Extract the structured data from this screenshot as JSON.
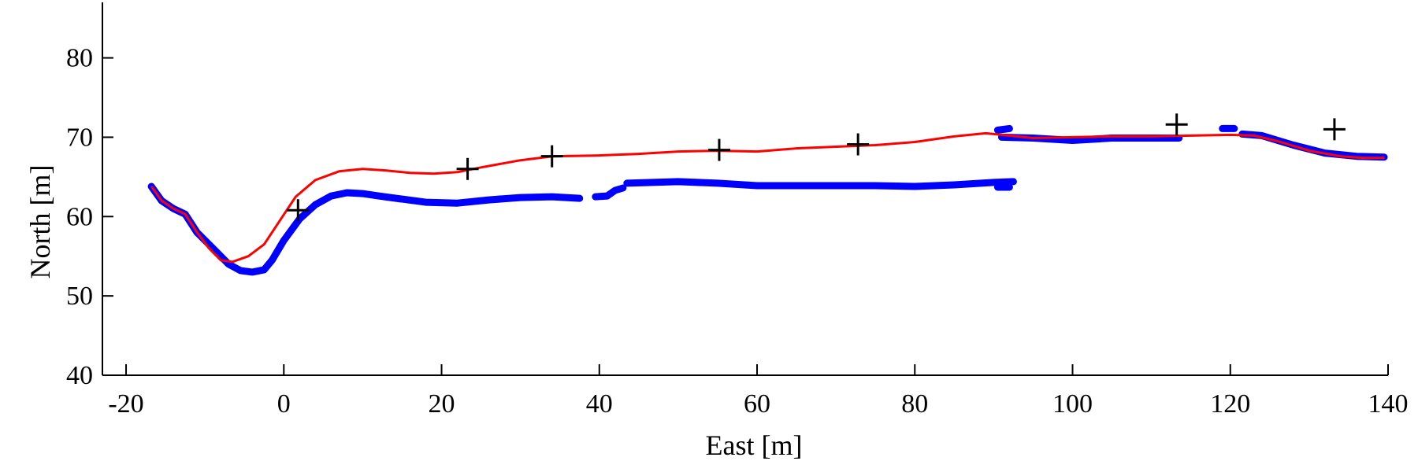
{
  "chart_data": {
    "type": "line",
    "title": "",
    "xlabel": "East [m]",
    "ylabel": "North [m]",
    "xlim": [
      -23,
      140
    ],
    "ylim": [
      40,
      87
    ],
    "xticks": [
      -20,
      0,
      20,
      40,
      60,
      80,
      100,
      120,
      140
    ],
    "yticks": [
      40,
      50,
      60,
      70,
      80
    ],
    "grid": false,
    "legend": "none",
    "colors": {
      "blue": "#0000ff",
      "red": "#ff0000",
      "black": "#000000"
    },
    "series": [
      {
        "style": "blue-dots",
        "segments": [
          [
            [
              -16.8,
              63.8
            ],
            [
              -15.5,
              62
            ],
            [
              -14,
              61
            ],
            [
              -12.5,
              60.3
            ],
            [
              -11,
              58
            ],
            [
              -9.5,
              56.5
            ],
            [
              -8,
              55
            ],
            [
              -7,
              54
            ],
            [
              -5.5,
              53.2
            ],
            [
              -4,
              53
            ],
            [
              -2.5,
              53.3
            ],
            [
              -1.5,
              54.5
            ],
            [
              0,
              57
            ],
            [
              2,
              59.7
            ],
            [
              4,
              61.5
            ],
            [
              6,
              62.6
            ],
            [
              8,
              63
            ],
            [
              10,
              62.9
            ],
            [
              12,
              62.6
            ],
            [
              15,
              62.2
            ],
            [
              18,
              61.8
            ],
            [
              22,
              61.7
            ],
            [
              26,
              62.1
            ],
            [
              30,
              62.4
            ],
            [
              34,
              62.5
            ],
            [
              37.5,
              62.3
            ]
          ],
          [
            [
              39.5,
              62.5
            ],
            [
              41,
              62.6
            ],
            [
              42,
              63.3
            ],
            [
              43,
              63.6
            ]
          ],
          [
            [
              43.5,
              64.2
            ],
            [
              50,
              64.4
            ],
            [
              55,
              64.2
            ],
            [
              60,
              63.9
            ],
            [
              65,
              63.9
            ],
            [
              70,
              63.9
            ],
            [
              75,
              63.9
            ],
            [
              80,
              63.8
            ],
            [
              85,
              64
            ],
            [
              90,
              64.3
            ],
            [
              92.5,
              64.4
            ]
          ],
          [
            [
              90.5,
              63.7
            ],
            [
              92,
              63.7
            ]
          ],
          [
            [
              90.5,
              70.9
            ],
            [
              92,
              71.1
            ]
          ],
          [
            [
              91,
              70
            ],
            [
              95,
              69.9
            ],
            [
              100,
              69.6
            ],
            [
              105,
              69.9
            ],
            [
              110,
              69.9
            ],
            [
              113.5,
              69.9
            ]
          ],
          [
            [
              119,
              71.1
            ],
            [
              120.5,
              71.1
            ]
          ],
          [
            [
              121.5,
              70.4
            ],
            [
              124,
              70.2
            ],
            [
              128,
              69
            ],
            [
              132,
              68
            ],
            [
              136,
              67.6
            ],
            [
              139.5,
              67.5
            ]
          ]
        ]
      },
      {
        "style": "red-line",
        "points": [
          [
            -16.8,
            63.8
          ],
          [
            -15.5,
            62
          ],
          [
            -14,
            61
          ],
          [
            -12.5,
            60.3
          ],
          [
            -11,
            58
          ],
          [
            -9.5,
            56
          ],
          [
            -8,
            54.5
          ],
          [
            -6.5,
            54.3
          ],
          [
            -4.5,
            55
          ],
          [
            -2.5,
            56.5
          ],
          [
            -0.5,
            59.5
          ],
          [
            1.5,
            62.5
          ],
          [
            4,
            64.6
          ],
          [
            7,
            65.7
          ],
          [
            10,
            66
          ],
          [
            13,
            65.8
          ],
          [
            16,
            65.5
          ],
          [
            19,
            65.4
          ],
          [
            22,
            65.6
          ],
          [
            25,
            66.2
          ],
          [
            30,
            67.1
          ],
          [
            34,
            67.6
          ],
          [
            40,
            67.7
          ],
          [
            45,
            67.9
          ],
          [
            50,
            68.2
          ],
          [
            55,
            68.3
          ],
          [
            60,
            68.2
          ],
          [
            65,
            68.6
          ],
          [
            70,
            68.8
          ],
          [
            75,
            69
          ],
          [
            80,
            69.4
          ],
          [
            85,
            70.1
          ],
          [
            89,
            70.5
          ],
          [
            91,
            70.3
          ],
          [
            95,
            69.9
          ],
          [
            100,
            70
          ],
          [
            105,
            70.1
          ],
          [
            110,
            70.1
          ],
          [
            115,
            70.2
          ],
          [
            120,
            70.3
          ],
          [
            123,
            70.2
          ],
          [
            126,
            69.5
          ],
          [
            130,
            68.3
          ],
          [
            134,
            67.6
          ],
          [
            137,
            67.4
          ],
          [
            139.5,
            67.4
          ]
        ]
      },
      {
        "style": "black-plus",
        "points": [
          [
            1.8,
            60.8
          ],
          [
            23.3,
            66
          ],
          [
            34,
            67.6
          ],
          [
            55.2,
            68.4
          ],
          [
            72.8,
            69.1
          ],
          [
            113.2,
            71.6
          ],
          [
            133.2,
            71
          ]
        ]
      }
    ]
  }
}
